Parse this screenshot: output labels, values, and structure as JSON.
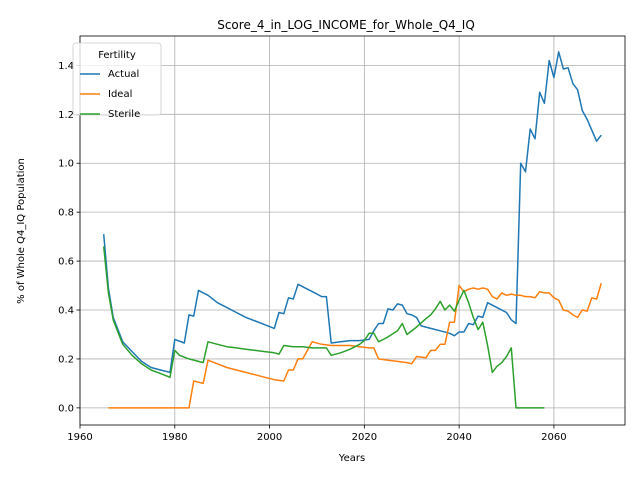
{
  "chart_data": {
    "type": "line",
    "title": "Score_4_in_LOG_INCOME_for_Whole_Q4_IQ",
    "xlabel": "Years",
    "ylabel": "% of Whole Q4_IQ Population",
    "xlim": [
      1960,
      2075
    ],
    "ylim": [
      -0.07,
      1.52
    ],
    "xticks": [
      1960,
      1980,
      2000,
      2020,
      2040,
      2060
    ],
    "yticks": [
      0.0,
      0.2,
      0.4,
      0.6,
      0.8,
      1.0,
      1.2,
      1.4
    ],
    "grid": true,
    "legend": {
      "title": "Fertility",
      "placement": "top-left"
    },
    "series": [
      {
        "name": "Actual",
        "color": "#1f77b4",
        "points": [
          [
            1965,
            0.71
          ],
          [
            1966,
            0.49
          ],
          [
            1967,
            0.37
          ],
          [
            1969,
            0.27
          ],
          [
            1971,
            0.23
          ],
          [
            1973,
            0.19
          ],
          [
            1975,
            0.165
          ],
          [
            1977,
            0.155
          ],
          [
            1979,
            0.145
          ],
          [
            1980,
            0.28
          ],
          [
            1982,
            0.265
          ],
          [
            1983,
            0.38
          ],
          [
            1984,
            0.375
          ],
          [
            1985,
            0.48
          ],
          [
            1987,
            0.46
          ],
          [
            1989,
            0.43
          ],
          [
            1991,
            0.41
          ],
          [
            1993,
            0.39
          ],
          [
            1995,
            0.37
          ],
          [
            1997,
            0.355
          ],
          [
            1999,
            0.34
          ],
          [
            2001,
            0.325
          ],
          [
            2002,
            0.39
          ],
          [
            2003,
            0.385
          ],
          [
            2004,
            0.45
          ],
          [
            2005,
            0.445
          ],
          [
            2006,
            0.505
          ],
          [
            2008,
            0.485
          ],
          [
            2010,
            0.465
          ],
          [
            2011,
            0.455
          ],
          [
            2012,
            0.455
          ],
          [
            2013,
            0.265
          ],
          [
            2015,
            0.27
          ],
          [
            2017,
            0.275
          ],
          [
            2019,
            0.275
          ],
          [
            2021,
            0.28
          ],
          [
            2022,
            0.315
          ],
          [
            2023,
            0.345
          ],
          [
            2024,
            0.345
          ],
          [
            2025,
            0.405
          ],
          [
            2026,
            0.4
          ],
          [
            2027,
            0.425
          ],
          [
            2028,
            0.42
          ],
          [
            2029,
            0.385
          ],
          [
            2030,
            0.38
          ],
          [
            2031,
            0.37
          ],
          [
            2032,
            0.335
          ],
          [
            2034,
            0.325
          ],
          [
            2036,
            0.315
          ],
          [
            2038,
            0.305
          ],
          [
            2039,
            0.295
          ],
          [
            2040,
            0.31
          ],
          [
            2041,
            0.31
          ],
          [
            2042,
            0.345
          ],
          [
            2043,
            0.34
          ],
          [
            2044,
            0.375
          ],
          [
            2045,
            0.37
          ],
          [
            2046,
            0.43
          ],
          [
            2048,
            0.41
          ],
          [
            2050,
            0.39
          ],
          [
            2051,
            0.36
          ],
          [
            2052,
            0.345
          ],
          [
            2053,
            1.0
          ],
          [
            2054,
            0.965
          ],
          [
            2055,
            1.14
          ],
          [
            2056,
            1.1
          ],
          [
            2057,
            1.29
          ],
          [
            2058,
            1.245
          ],
          [
            2059,
            1.42
          ],
          [
            2060,
            1.35
          ],
          [
            2061,
            1.455
          ],
          [
            2062,
            1.385
          ],
          [
            2063,
            1.39
          ],
          [
            2064,
            1.325
          ],
          [
            2065,
            1.3
          ],
          [
            2066,
            1.215
          ],
          [
            2067,
            1.18
          ],
          [
            2068,
            1.135
          ],
          [
            2069,
            1.09
          ],
          [
            2070,
            1.115
          ]
        ]
      },
      {
        "name": "Ideal",
        "color": "#ff7f0e",
        "points": [
          [
            1966,
            0.0
          ],
          [
            1970,
            0.0
          ],
          [
            1975,
            0.0
          ],
          [
            1980,
            0.0
          ],
          [
            1983,
            0.0
          ],
          [
            1984,
            0.11
          ],
          [
            1985,
            0.105
          ],
          [
            1986,
            0.1
          ],
          [
            1987,
            0.195
          ],
          [
            1989,
            0.18
          ],
          [
            1991,
            0.165
          ],
          [
            1993,
            0.155
          ],
          [
            1995,
            0.145
          ],
          [
            1997,
            0.135
          ],
          [
            1999,
            0.125
          ],
          [
            2001,
            0.115
          ],
          [
            2003,
            0.11
          ],
          [
            2004,
            0.155
          ],
          [
            2005,
            0.155
          ],
          [
            2006,
            0.2
          ],
          [
            2007,
            0.2
          ],
          [
            2009,
            0.27
          ],
          [
            2011,
            0.26
          ],
          [
            2013,
            0.255
          ],
          [
            2015,
            0.255
          ],
          [
            2017,
            0.255
          ],
          [
            2019,
            0.25
          ],
          [
            2021,
            0.245
          ],
          [
            2022,
            0.245
          ],
          [
            2023,
            0.2
          ],
          [
            2025,
            0.195
          ],
          [
            2027,
            0.19
          ],
          [
            2029,
            0.185
          ],
          [
            2030,
            0.18
          ],
          [
            2031,
            0.21
          ],
          [
            2033,
            0.205
          ],
          [
            2034,
            0.235
          ],
          [
            2035,
            0.235
          ],
          [
            2036,
            0.26
          ],
          [
            2037,
            0.26
          ],
          [
            2038,
            0.35
          ],
          [
            2039,
            0.35
          ],
          [
            2040,
            0.5
          ],
          [
            2041,
            0.475
          ],
          [
            2042,
            0.485
          ],
          [
            2043,
            0.49
          ],
          [
            2044,
            0.485
          ],
          [
            2045,
            0.49
          ],
          [
            2046,
            0.485
          ],
          [
            2047,
            0.455
          ],
          [
            2048,
            0.445
          ],
          [
            2049,
            0.47
          ],
          [
            2050,
            0.46
          ],
          [
            2051,
            0.465
          ],
          [
            2052,
            0.46
          ],
          [
            2053,
            0.46
          ],
          [
            2054,
            0.455
          ],
          [
            2055,
            0.455
          ],
          [
            2056,
            0.45
          ],
          [
            2057,
            0.475
          ],
          [
            2058,
            0.47
          ],
          [
            2059,
            0.47
          ],
          [
            2060,
            0.45
          ],
          [
            2061,
            0.44
          ],
          [
            2062,
            0.4
          ],
          [
            2063,
            0.395
          ],
          [
            2064,
            0.38
          ],
          [
            2065,
            0.37
          ],
          [
            2066,
            0.4
          ],
          [
            2067,
            0.395
          ],
          [
            2068,
            0.45
          ],
          [
            2069,
            0.445
          ],
          [
            2070,
            0.51
          ]
        ]
      },
      {
        "name": "Sterile",
        "color": "#2ca02c",
        "points": [
          [
            1965,
            0.66
          ],
          [
            1966,
            0.47
          ],
          [
            1967,
            0.36
          ],
          [
            1969,
            0.26
          ],
          [
            1971,
            0.215
          ],
          [
            1973,
            0.18
          ],
          [
            1975,
            0.155
          ],
          [
            1977,
            0.14
          ],
          [
            1979,
            0.125
          ],
          [
            1980,
            0.235
          ],
          [
            1981,
            0.215
          ],
          [
            1983,
            0.2
          ],
          [
            1985,
            0.19
          ],
          [
            1986,
            0.185
          ],
          [
            1987,
            0.27
          ],
          [
            1989,
            0.26
          ],
          [
            1991,
            0.25
          ],
          [
            1993,
            0.245
          ],
          [
            1995,
            0.24
          ],
          [
            1997,
            0.235
          ],
          [
            1999,
            0.23
          ],
          [
            2001,
            0.225
          ],
          [
            2002,
            0.22
          ],
          [
            2003,
            0.255
          ],
          [
            2005,
            0.25
          ],
          [
            2007,
            0.25
          ],
          [
            2009,
            0.245
          ],
          [
            2011,
            0.245
          ],
          [
            2012,
            0.245
          ],
          [
            2013,
            0.215
          ],
          [
            2015,
            0.225
          ],
          [
            2017,
            0.24
          ],
          [
            2019,
            0.26
          ],
          [
            2020,
            0.275
          ],
          [
            2021,
            0.305
          ],
          [
            2022,
            0.305
          ],
          [
            2023,
            0.27
          ],
          [
            2025,
            0.29
          ],
          [
            2027,
            0.315
          ],
          [
            2028,
            0.345
          ],
          [
            2029,
            0.3
          ],
          [
            2031,
            0.33
          ],
          [
            2033,
            0.365
          ],
          [
            2034,
            0.38
          ],
          [
            2035,
            0.405
          ],
          [
            2036,
            0.435
          ],
          [
            2037,
            0.4
          ],
          [
            2038,
            0.42
          ],
          [
            2039,
            0.395
          ],
          [
            2040,
            0.44
          ],
          [
            2041,
            0.48
          ],
          [
            2042,
            0.43
          ],
          [
            2043,
            0.37
          ],
          [
            2044,
            0.32
          ],
          [
            2045,
            0.35
          ],
          [
            2046,
            0.255
          ],
          [
            2047,
            0.145
          ],
          [
            2048,
            0.17
          ],
          [
            2049,
            0.185
          ],
          [
            2050,
            0.21
          ],
          [
            2051,
            0.245
          ],
          [
            2052,
            0.0
          ],
          [
            2055,
            0.0
          ],
          [
            2058,
            0.0
          ]
        ]
      }
    ]
  }
}
